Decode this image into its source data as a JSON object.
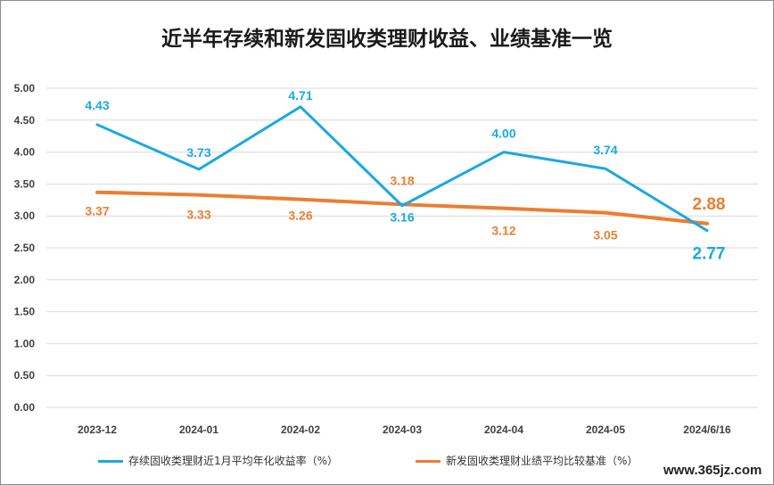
{
  "chart_data": {
    "type": "line",
    "title": "近半年存续和新发固收类理财收益、业绩基准一览",
    "categories": [
      "2023-12",
      "2024-01",
      "2024-02",
      "2024-03",
      "2024-04",
      "2024-05",
      "2024/6/16"
    ],
    "y_ticks": [
      "5.00",
      "4.50",
      "4.00",
      "3.50",
      "3.00",
      "2.50",
      "2.00",
      "1.50",
      "1.00",
      "0.50",
      "0.00"
    ],
    "ylim": [
      0,
      5
    ],
    "grid": true,
    "legend_position": "bottom",
    "series": [
      {
        "name": "存续固收类理财近1月平均年化收益率（%）",
        "color": "#1aa9e1",
        "values": [
          4.43,
          3.73,
          4.71,
          3.16,
          4.0,
          3.74,
          2.77
        ],
        "labels": [
          "4.43",
          "3.73",
          "4.71",
          "3.16",
          "4.00",
          "3.74",
          "2.77"
        ]
      },
      {
        "name": "新发固收类理财业绩平均比较基准（%）",
        "color": "#ed7d31",
        "values": [
          3.37,
          3.33,
          3.26,
          3.18,
          3.12,
          3.05,
          2.88
        ],
        "labels": [
          "3.37",
          "3.33",
          "3.26",
          "3.18",
          "3.12",
          "3.05",
          "2.88"
        ]
      }
    ]
  },
  "watermark": "www.365jz.com"
}
